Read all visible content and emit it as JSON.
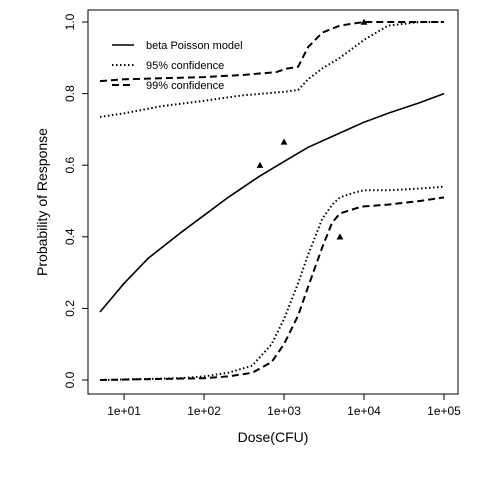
{
  "chart_data": {
    "type": "line",
    "title": "",
    "xlabel": "Dose(CFU)",
    "ylabel": "Probability of Response",
    "x_scale": "log10",
    "xlim": [
      5,
      100000
    ],
    "ylim": [
      0,
      1.0
    ],
    "x_ticks": [
      10,
      100,
      1000,
      10000,
      100000
    ],
    "x_tick_labels": [
      "1e+01",
      "1e+02",
      "1e+03",
      "1e+04",
      "1e+05"
    ],
    "y_ticks": [
      0,
      0.2,
      0.4,
      0.6,
      0.8,
      1.0
    ],
    "y_tick_labels": [
      "0.0",
      "0.2",
      "0.4",
      "0.6",
      "0.8",
      "1.0"
    ],
    "grid": false,
    "legend_position": "top-left",
    "legend": [
      {
        "label": "beta Poisson model",
        "style": "solid"
      },
      {
        "label": "95% confidence",
        "style": "dotted"
      },
      {
        "label": "99% confidence",
        "style": "dashed"
      }
    ],
    "series": [
      {
        "name": "beta Poisson model",
        "style": "solid",
        "points": [
          [
            5,
            0.19
          ],
          [
            10,
            0.27
          ],
          [
            20,
            0.34
          ],
          [
            50,
            0.41
          ],
          [
            100,
            0.46
          ],
          [
            200,
            0.51
          ],
          [
            500,
            0.57
          ],
          [
            1000,
            0.61
          ],
          [
            2000,
            0.65
          ],
          [
            5000,
            0.69
          ],
          [
            10000,
            0.72
          ],
          [
            20000,
            0.745
          ],
          [
            50000,
            0.775
          ],
          [
            100000,
            0.8
          ]
        ]
      },
      {
        "name": "95% confidence",
        "style": "dotted",
        "points": [
          [
            5,
            0.735
          ],
          [
            10,
            0.745
          ],
          [
            30,
            0.765
          ],
          [
            100,
            0.78
          ],
          [
            300,
            0.795
          ],
          [
            1000,
            0.805
          ],
          [
            1500,
            0.81
          ],
          [
            2000,
            0.84
          ],
          [
            3000,
            0.87
          ],
          [
            5000,
            0.9
          ],
          [
            10000,
            0.95
          ],
          [
            20000,
            0.99
          ],
          [
            50000,
            1.0
          ],
          [
            100000,
            1.0
          ]
        ]
      },
      {
        "name": "95% confidence",
        "style": "dotted",
        "points": [
          [
            5,
            0.0
          ],
          [
            50,
            0.005
          ],
          [
            100,
            0.01
          ],
          [
            200,
            0.02
          ],
          [
            400,
            0.04
          ],
          [
            700,
            0.1
          ],
          [
            1000,
            0.17
          ],
          [
            1500,
            0.27
          ],
          [
            2000,
            0.35
          ],
          [
            3000,
            0.45
          ],
          [
            4000,
            0.49
          ],
          [
            5000,
            0.51
          ],
          [
            8000,
            0.525
          ],
          [
            10000,
            0.53
          ],
          [
            20000,
            0.53
          ],
          [
            50000,
            0.535
          ],
          [
            100000,
            0.54
          ]
        ]
      },
      {
        "name": "99% confidence",
        "style": "dashed",
        "points": [
          [
            5,
            0.835
          ],
          [
            10,
            0.84
          ],
          [
            30,
            0.843
          ],
          [
            100,
            0.846
          ],
          [
            300,
            0.852
          ],
          [
            800,
            0.86
          ],
          [
            1100,
            0.87
          ],
          [
            1500,
            0.875
          ],
          [
            2000,
            0.93
          ],
          [
            3000,
            0.97
          ],
          [
            5000,
            0.99
          ],
          [
            10000,
            1.0
          ],
          [
            100000,
            1.0
          ]
        ]
      },
      {
        "name": "99% confidence",
        "style": "dashed",
        "points": [
          [
            5,
            0.0
          ],
          [
            100,
            0.005
          ],
          [
            200,
            0.01
          ],
          [
            400,
            0.02
          ],
          [
            700,
            0.05
          ],
          [
            1000,
            0.1
          ],
          [
            1500,
            0.18
          ],
          [
            2000,
            0.26
          ],
          [
            3000,
            0.37
          ],
          [
            4000,
            0.44
          ],
          [
            5000,
            0.465
          ],
          [
            8000,
            0.48
          ],
          [
            10000,
            0.485
          ],
          [
            20000,
            0.49
          ],
          [
            50000,
            0.5
          ],
          [
            100000,
            0.51
          ]
        ]
      }
    ],
    "observed_points": [
      {
        "x": 500,
        "y": 0.6
      },
      {
        "x": 1000,
        "y": 0.665
      },
      {
        "x": 5000,
        "y": 0.4
      },
      {
        "x": 10000,
        "y": 1.0
      }
    ]
  }
}
